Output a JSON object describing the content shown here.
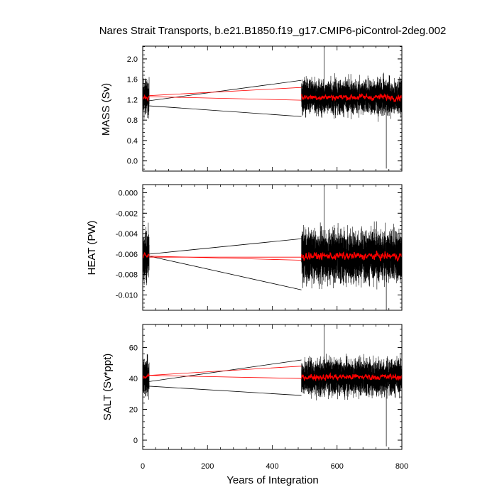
{
  "chart_data": {
    "type": "line",
    "title": "Nares Strait Transports, b.e21.B1850.f19_g17.CMIP6-piControl-2deg.002",
    "xlabel": "Years of Integration",
    "xlim": [
      0,
      800
    ],
    "xticks": [
      0,
      200,
      400,
      600,
      800
    ],
    "xtick_labels": [
      "0",
      "200",
      "400",
      "600",
      "800"
    ],
    "colors": {
      "raw": "#000000",
      "smoothed": "#ff0000"
    },
    "series_segments": [
      {
        "years": [
          1,
          20
        ]
      },
      {
        "years": [
          490,
          800
        ]
      }
    ],
    "panels": [
      {
        "ylabel": "MASS (Sv)",
        "ylim": [
          -0.2,
          2.25
        ],
        "yticks": [
          0.0,
          0.4,
          0.8,
          1.2,
          1.6,
          2.0
        ],
        "ytick_labels": [
          "0.0",
          "0.4",
          "0.8",
          "1.2",
          "1.6",
          "2.0"
        ],
        "mean": 1.25,
        "spread": 0.16,
        "smooth_spread": 0.05,
        "envelope_at_20": [
          1.08,
          1.18
        ],
        "envelope_at_490": [
          0.87,
          1.58
        ],
        "smooth_at_20": [
          1.28,
          1.26
        ],
        "smooth_at_490": [
          1.44,
          1.19
        ],
        "spike_max": 2.3,
        "spike_min": -0.15
      },
      {
        "ylabel": "HEAT (PW)",
        "ylim": [
          -0.0115,
          0.0008
        ],
        "yticks": [
          0.0,
          -0.002,
          -0.004,
          -0.006,
          -0.008,
          -0.01
        ],
        "ytick_labels": [
          "0.000",
          "-0.002",
          "-0.004",
          "-0.006",
          "-0.008",
          "-0.010"
        ],
        "mean": -0.0062,
        "spread": 0.0012,
        "smooth_spread": 0.0003,
        "envelope_at_20": [
          -0.0062,
          -0.006
        ],
        "envelope_at_490": [
          -0.0095,
          -0.0045
        ],
        "smooth_at_20": [
          -0.0063,
          -0.0062
        ],
        "smooth_at_490": [
          -0.0063,
          -0.0066
        ],
        "spike_max": 0.0009,
        "spike_min": -0.0115
      },
      {
        "ylabel": "SALT (Sv*ppt)",
        "ylim": [
          -6,
          75
        ],
        "yticks": [
          0,
          20,
          40,
          60
        ],
        "ytick_labels": [
          "0",
          "20",
          "40",
          "60"
        ],
        "mean": 41,
        "spread": 5.5,
        "smooth_spread": 1.6,
        "envelope_at_20": [
          35,
          38
        ],
        "envelope_at_490": [
          29,
          52
        ],
        "smooth_at_20": [
          42,
          42
        ],
        "smooth_at_490": [
          48,
          40
        ],
        "spike_max": 76,
        "spike_min": -4
      }
    ]
  }
}
